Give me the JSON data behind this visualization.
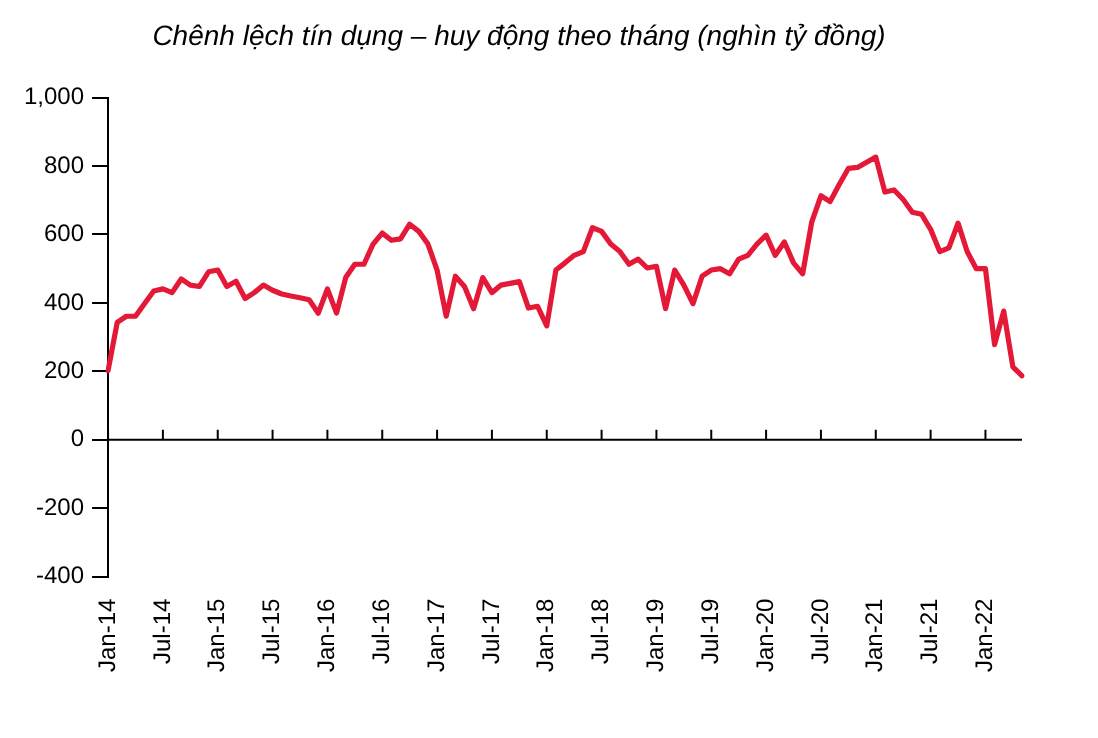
{
  "chart_data": {
    "type": "line",
    "title": "Chênh lệch tín dụng – huy động theo tháng (nghìn tỷ đồng)",
    "categories": [
      "Jan-14",
      null,
      null,
      null,
      null,
      null,
      "Jul-14",
      null,
      null,
      null,
      null,
      null,
      "Jan-15",
      null,
      null,
      null,
      null,
      null,
      "Jul-15",
      null,
      null,
      null,
      null,
      null,
      "Jan-16",
      null,
      null,
      null,
      null,
      null,
      "Jul-16",
      null,
      null,
      null,
      null,
      null,
      "Jan-17",
      null,
      null,
      null,
      null,
      null,
      "Jul-17",
      null,
      null,
      null,
      null,
      null,
      "Jan-18",
      null,
      null,
      null,
      null,
      null,
      "Jul-18",
      null,
      null,
      null,
      null,
      null,
      "Jan-19",
      null,
      null,
      null,
      null,
      null,
      "Jul-19",
      null,
      null,
      null,
      null,
      null,
      "Jan-20",
      null,
      null,
      null,
      null,
      null,
      "Jul-20",
      null,
      null,
      null,
      null,
      null,
      "Jan-21",
      null,
      null,
      null,
      null,
      null,
      "Jul-21",
      null,
      null,
      null,
      null,
      null,
      "Jan-22",
      null,
      null,
      null,
      null
    ],
    "series": [
      {
        "color": "#e31937",
        "values": [
          202,
          343,
          361,
          361,
          398,
          435,
          441,
          430,
          470,
          452,
          448,
          491,
          496,
          448,
          463,
          413,
          430,
          452,
          437,
          426,
          420,
          415,
          409,
          370,
          441,
          370,
          474,
          513,
          513,
          572,
          604,
          583,
          587,
          630,
          609,
          572,
          496,
          361,
          478,
          448,
          383,
          474,
          430,
          452,
          457,
          462,
          385,
          390,
          333,
          496,
          517,
          539,
          550,
          620,
          609,
          572,
          550,
          513,
          528,
          502,
          507,
          383,
          496,
          452,
          398,
          478,
          496,
          500,
          485,
          528,
          539,
          572,
          598,
          539,
          578,
          517,
          485,
          637,
          713,
          696,
          746,
          793,
          796,
          811,
          826,
          724,
          730,
          702,
          665,
          659,
          615,
          550,
          561,
          633,
          550,
          500,
          500,
          278,
          376,
          213,
          187
        ]
      }
    ],
    "ylim": [
      -400,
      1000
    ],
    "yticks": [
      {
        "value": -400,
        "label": "-400"
      },
      {
        "value": -200,
        "label": "-200"
      },
      0,
      200,
      400,
      600,
      800,
      {
        "value": 1000,
        "label": "1,000"
      }
    ],
    "marker": "none",
    "line_style": "solid"
  }
}
